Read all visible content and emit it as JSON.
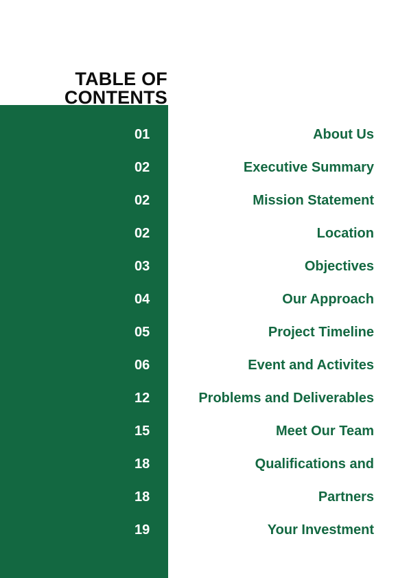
{
  "title": {
    "line1": "TABLE OF",
    "line2": "CONTENTS"
  },
  "colors": {
    "accent": "#136841",
    "text": "#0d0d0d",
    "background": "#ffffff"
  },
  "toc": [
    {
      "page": "01",
      "label": "About Us"
    },
    {
      "page": "02",
      "label": "Executive Summary"
    },
    {
      "page": "02",
      "label": "Mission Statement"
    },
    {
      "page": "02",
      "label": "Location"
    },
    {
      "page": "03",
      "label": "Objectives"
    },
    {
      "page": "04",
      "label": "Our Approach"
    },
    {
      "page": "05",
      "label": "Project Timeline"
    },
    {
      "page": "06",
      "label": "Event and Activites"
    },
    {
      "page": "12",
      "label": "Problems and Deliverables"
    },
    {
      "page": "15",
      "label": "Meet Our Team"
    },
    {
      "page": "18",
      "label": "Qualifications and"
    },
    {
      "page": "18",
      "label": "Partners"
    },
    {
      "page": "19",
      "label": "Your Investment"
    }
  ]
}
